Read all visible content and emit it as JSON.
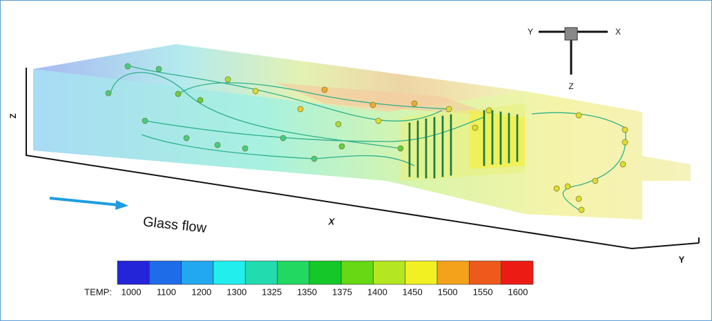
{
  "annotation": "Glass flow",
  "axes": {
    "x": "X",
    "y": "Y",
    "z": "Z"
  },
  "triad": {
    "x": "X",
    "y": "Y",
    "z": "Z"
  },
  "colorbar": {
    "label": "TEMP:",
    "ticks": [
      1000,
      1100,
      1200,
      1300,
      1325,
      1350,
      1375,
      1400,
      1450,
      1500,
      1550,
      1600
    ],
    "colors": [
      "#2424d8",
      "#1f6ce8",
      "#22a8ee",
      "#22eeee",
      "#22dcb0",
      "#22d860",
      "#14c828",
      "#66d814",
      "#b4e622",
      "#f2f022",
      "#f4a21c",
      "#ee5a1c",
      "#ec1c14"
    ]
  }
}
